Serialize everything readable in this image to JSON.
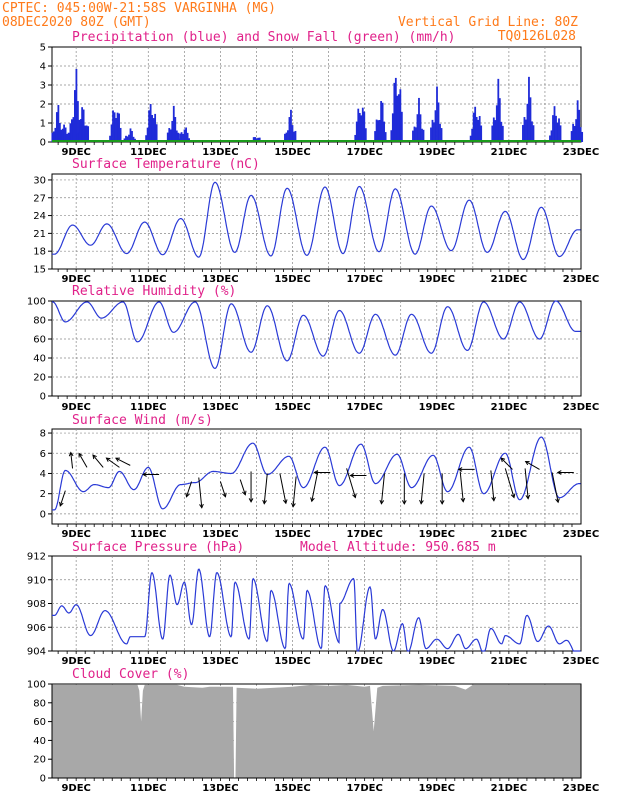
{
  "header": {
    "line1": "CPTEC:   045:00W-21:58S   VARGINHA (MG)",
    "line2": "08DEC2020 80Z (GMT)",
    "grid_note": "Vertical Grid Line: 80Z",
    "product_code": "TQ0126L028"
  },
  "colors": {
    "header": "#ff7a1a",
    "title": "#e0218a",
    "line": "#2a3ad6",
    "precip_bars": "#1f2bd8",
    "snow": "#1a9a1a",
    "cloud": "#a8a8a8",
    "grid": "#8a8a8a"
  },
  "date_labels": [
    "9DEC",
    "11DEC",
    "13DEC",
    "15DEC",
    "17DEC",
    "19DEC",
    "21DEC",
    "23DEC"
  ],
  "chart_data": [
    {
      "id": "precip",
      "type": "bar",
      "title": "Precipitation (blue) and Snow Fall (green) (mm/h)",
      "ylim": [
        0,
        5
      ],
      "yticks": [
        0,
        1,
        2,
        3,
        4,
        5
      ],
      "day_range": [
        8.33,
        23.0
      ],
      "series": [
        {
          "name": "Precipitation",
          "color": "#1f2bd8",
          "events": [
            [
              8.5,
              2.1
            ],
            [
              8.7,
              1.1
            ],
            [
              9.0,
              4.0
            ],
            [
              9.2,
              2.2
            ],
            [
              10.1,
              2.6
            ],
            [
              10.5,
              0.8
            ],
            [
              11.1,
              2.7
            ],
            [
              11.7,
              2.0
            ],
            [
              12.0,
              1.0
            ],
            [
              14.0,
              0.4
            ],
            [
              14.95,
              1.8
            ],
            [
              16.9,
              2.8
            ],
            [
              17.45,
              2.7
            ],
            [
              17.9,
              4.9
            ],
            [
              18.5,
              2.4
            ],
            [
              19.0,
              3.1
            ],
            [
              20.1,
              2.5
            ],
            [
              20.7,
              3.5
            ],
            [
              21.55,
              3.6
            ],
            [
              22.3,
              2.4
            ],
            [
              22.9,
              2.4
            ]
          ]
        },
        {
          "name": "Snow Fall",
          "color": "#1a9a1a",
          "values": [
            0
          ]
        }
      ]
    },
    {
      "id": "temp",
      "type": "line",
      "title": "Surface Temperature (nC)",
      "ylim": [
        15,
        31
      ],
      "yticks": [
        15,
        18,
        21,
        24,
        27,
        30
      ],
      "day_range": [
        8.33,
        23.0
      ],
      "minima": [
        [
          8.4,
          17.5
        ],
        [
          9.4,
          19.0
        ],
        [
          10.4,
          17.6
        ],
        [
          11.4,
          17.4
        ],
        [
          12.4,
          17.0
        ],
        [
          13.4,
          17.8
        ],
        [
          14.4,
          17.2
        ],
        [
          15.4,
          17.3
        ],
        [
          16.4,
          17.6
        ],
        [
          17.4,
          17.9
        ],
        [
          18.4,
          17.5
        ],
        [
          19.4,
          18.1
        ],
        [
          20.4,
          17.8
        ],
        [
          21.4,
          16.6
        ],
        [
          22.4,
          17.1
        ]
      ],
      "maxima": [
        [
          8.9,
          22.4
        ],
        [
          9.85,
          22.6
        ],
        [
          10.9,
          22.9
        ],
        [
          11.9,
          23.5
        ],
        [
          12.85,
          29.6
        ],
        [
          13.85,
          27.4
        ],
        [
          14.85,
          28.6
        ],
        [
          15.9,
          28.8
        ],
        [
          16.85,
          28.9
        ],
        [
          17.85,
          28.5
        ],
        [
          18.85,
          25.6
        ],
        [
          19.9,
          26.6
        ],
        [
          20.9,
          24.7
        ],
        [
          21.9,
          25.4
        ],
        [
          22.9,
          21.6
        ]
      ]
    },
    {
      "id": "rh",
      "type": "line",
      "title": "Relative Humidity (%)",
      "ylim": [
        0,
        100
      ],
      "yticks": [
        0,
        20,
        40,
        60,
        80,
        100
      ],
      "day_range": [
        8.33,
        23.0
      ],
      "minima": [
        [
          8.7,
          78
        ],
        [
          9.7,
          82
        ],
        [
          10.7,
          57
        ],
        [
          11.7,
          67
        ],
        [
          12.85,
          29
        ],
        [
          13.85,
          46
        ],
        [
          14.85,
          37
        ],
        [
          15.85,
          42
        ],
        [
          16.85,
          45
        ],
        [
          17.85,
          43
        ],
        [
          18.85,
          45
        ],
        [
          19.85,
          48
        ],
        [
          20.85,
          60
        ],
        [
          21.85,
          60
        ],
        [
          22.85,
          68
        ]
      ],
      "maxima": [
        [
          8.35,
          99
        ],
        [
          9.3,
          99
        ],
        [
          10.3,
          99
        ],
        [
          11.3,
          99
        ],
        [
          12.3,
          99
        ],
        [
          13.3,
          97
        ],
        [
          14.3,
          95
        ],
        [
          15.3,
          85
        ],
        [
          16.3,
          90
        ],
        [
          17.3,
          86
        ],
        [
          18.3,
          86
        ],
        [
          19.3,
          94
        ],
        [
          20.3,
          99
        ],
        [
          21.3,
          99
        ],
        [
          22.3,
          100
        ]
      ]
    },
    {
      "id": "wind",
      "type": "line",
      "title": "Surface Wind (m/s)",
      "ylim": [
        -1,
        8.4
      ],
      "yticks": [
        0,
        2,
        4,
        6,
        8
      ],
      "day_range": [
        8.33,
        23.0
      ],
      "minima": [
        [
          8.4,
          0.4
        ],
        [
          9.2,
          2.2
        ],
        [
          9.9,
          2.6
        ],
        [
          10.6,
          2.4
        ],
        [
          11.4,
          0.5
        ],
        [
          12.3,
          3.1
        ],
        [
          13.3,
          4.0
        ],
        [
          14.3,
          3.9
        ],
        [
          15.3,
          2.6
        ],
        [
          16.3,
          2.8
        ],
        [
          17.3,
          3.0
        ],
        [
          18.3,
          2.6
        ],
        [
          19.3,
          2.2
        ],
        [
          20.3,
          2.0
        ],
        [
          21.3,
          1.4
        ],
        [
          22.4,
          1.6
        ]
      ],
      "maxima": [
        [
          8.7,
          4.3
        ],
        [
          9.5,
          2.9
        ],
        [
          10.2,
          4.2
        ],
        [
          11.0,
          4.6
        ],
        [
          11.9,
          2.9
        ],
        [
          12.8,
          4.2
        ],
        [
          13.9,
          7.0
        ],
        [
          14.9,
          5.7
        ],
        [
          15.9,
          6.6
        ],
        [
          16.9,
          6.9
        ],
        [
          17.9,
          5.9
        ],
        [
          18.9,
          5.8
        ],
        [
          19.9,
          6.6
        ],
        [
          20.9,
          6.0
        ],
        [
          21.9,
          7.6
        ],
        [
          22.95,
          3.0
        ]
      ],
      "arrows": [
        [
          8.7,
          2.3,
          -0.3,
          -0.9
        ],
        [
          8.9,
          4.5,
          -0.1,
          0.9
        ],
        [
          9.3,
          4.6,
          -0.4,
          0.7
        ],
        [
          9.75,
          4.6,
          -0.5,
          0.6
        ],
        [
          10.2,
          4.6,
          -0.7,
          0.5
        ],
        [
          10.5,
          4.8,
          -0.8,
          0.4
        ],
        [
          11.3,
          3.9,
          -0.8,
          0.0
        ],
        [
          12.2,
          3.2,
          -0.3,
          -0.9
        ],
        [
          12.4,
          3.6,
          0.1,
          -1.0
        ],
        [
          13.0,
          3.2,
          0.3,
          -0.9
        ],
        [
          13.55,
          3.4,
          0.3,
          -0.9
        ],
        [
          13.85,
          4.2,
          0.0,
          -1.0
        ],
        [
          14.3,
          4.0,
          -0.1,
          -1.0
        ],
        [
          14.65,
          4.0,
          0.2,
          -1.0
        ],
        [
          15.1,
          3.7,
          -0.1,
          -1.0
        ],
        [
          15.7,
          4.2,
          -0.2,
          -1.0
        ],
        [
          16.05,
          4.1,
          -0.8,
          0.0
        ],
        [
          16.5,
          4.5,
          0.3,
          -1.0
        ],
        [
          17.05,
          3.8,
          -0.9,
          0.0
        ],
        [
          17.55,
          4.0,
          -0.1,
          -1.0
        ],
        [
          18.1,
          4.0,
          0.0,
          -1.0
        ],
        [
          18.65,
          4.0,
          -0.1,
          -1.0
        ],
        [
          19.15,
          4.0,
          0.0,
          -1.0
        ],
        [
          19.65,
          4.2,
          0.1,
          -1.0
        ],
        [
          20.05,
          4.4,
          -0.7,
          0.0
        ],
        [
          20.5,
          4.3,
          0.1,
          -1.0
        ],
        [
          20.9,
          4.5,
          0.3,
          -1.0
        ],
        [
          21.1,
          4.4,
          -0.5,
          0.5
        ],
        [
          21.45,
          4.5,
          0.1,
          -1.0
        ],
        [
          21.85,
          4.4,
          -0.7,
          0.4
        ],
        [
          22.2,
          4.1,
          0.2,
          -1.0
        ],
        [
          22.8,
          4.1,
          -0.9,
          0.0
        ]
      ]
    },
    {
      "id": "pressure",
      "type": "line",
      "title": "Surface Pressure (hPa)",
      "annotation": "Model Altitude: 950.685 m",
      "ylim": [
        904,
        912
      ],
      "yticks": [
        904,
        906,
        908,
        910,
        912
      ],
      "day_range": [
        8.33,
        23.0
      ],
      "minima": [
        [
          8.4,
          907.0
        ],
        [
          8.8,
          907.2
        ],
        [
          9.4,
          905.3
        ],
        [
          10.4,
          904.6
        ],
        [
          10.9,
          905.2
        ],
        [
          11.4,
          905.0
        ],
        [
          11.8,
          907.9
        ],
        [
          12.2,
          906.2
        ],
        [
          12.7,
          905.2
        ],
        [
          13.3,
          905.2
        ],
        [
          13.8,
          905.0
        ],
        [
          14.3,
          904.8
        ],
        [
          14.8,
          904.2
        ],
        [
          15.3,
          905.0
        ],
        [
          15.8,
          904.2
        ],
        [
          16.3,
          904.7
        ],
        [
          16.8,
          903.9
        ],
        [
          17.3,
          905.0
        ],
        [
          17.8,
          904.0
        ],
        [
          18.2,
          903.9
        ],
        [
          18.7,
          904.2
        ],
        [
          19.3,
          904.2
        ],
        [
          19.8,
          904.2
        ],
        [
          20.3,
          903.8
        ],
        [
          20.8,
          904.6
        ],
        [
          21.3,
          904.6
        ],
        [
          21.8,
          904.8
        ],
        [
          22.4,
          904.6
        ],
        [
          22.9,
          903.6
        ]
      ],
      "maxima": [
        [
          8.6,
          907.8
        ],
        [
          9.0,
          907.9
        ],
        [
          9.8,
          907.4
        ],
        [
          10.5,
          905.2
        ],
        [
          11.1,
          910.6
        ],
        [
          11.6,
          910.4
        ],
        [
          12.0,
          909.8
        ],
        [
          12.4,
          910.9
        ],
        [
          12.9,
          910.6
        ],
        [
          13.4,
          909.8
        ],
        [
          13.9,
          910.1
        ],
        [
          14.4,
          909.1
        ],
        [
          14.9,
          909.7
        ],
        [
          15.4,
          909.1
        ],
        [
          15.9,
          909.5
        ],
        [
          16.3,
          908.0
        ],
        [
          16.7,
          910.1
        ],
        [
          17.15,
          909.4
        ],
        [
          17.5,
          907.5
        ],
        [
          18.05,
          906.3
        ],
        [
          18.5,
          906.8
        ],
        [
          19.0,
          905.0
        ],
        [
          19.6,
          905.4
        ],
        [
          20.1,
          905.0
        ],
        [
          20.5,
          905.9
        ],
        [
          20.9,
          905.3
        ],
        [
          21.5,
          907.0
        ],
        [
          22.1,
          906.1
        ],
        [
          22.6,
          904.9
        ]
      ]
    },
    {
      "id": "cloud",
      "type": "area",
      "title": "Cloud Cover (%)",
      "ylim": [
        0,
        100
      ],
      "yticks": [
        0,
        20,
        40,
        60,
        80,
        100
      ],
      "day_range": [
        8.33,
        23.0
      ],
      "values": [
        [
          8.33,
          99
        ],
        [
          10.7,
          99
        ],
        [
          10.75,
          93
        ],
        [
          10.8,
          60
        ],
        [
          10.85,
          93
        ],
        [
          10.9,
          99
        ],
        [
          11.8,
          99
        ],
        [
          12.0,
          97
        ],
        [
          12.5,
          96
        ],
        [
          12.7,
          97
        ],
        [
          13.2,
          97
        ],
        [
          13.35,
          97
        ],
        [
          13.38,
          0
        ],
        [
          13.42,
          0
        ],
        [
          13.45,
          96
        ],
        [
          14.0,
          95
        ],
        [
          15.0,
          97
        ],
        [
          15.5,
          99
        ],
        [
          16.0,
          98
        ],
        [
          16.5,
          99
        ],
        [
          17.0,
          97
        ],
        [
          17.15,
          98
        ],
        [
          17.25,
          50
        ],
        [
          17.35,
          96
        ],
        [
          17.5,
          98
        ],
        [
          18.5,
          99
        ],
        [
          19.5,
          98
        ],
        [
          19.8,
          94
        ],
        [
          20.0,
          99
        ],
        [
          23.0,
          99
        ]
      ]
    }
  ]
}
